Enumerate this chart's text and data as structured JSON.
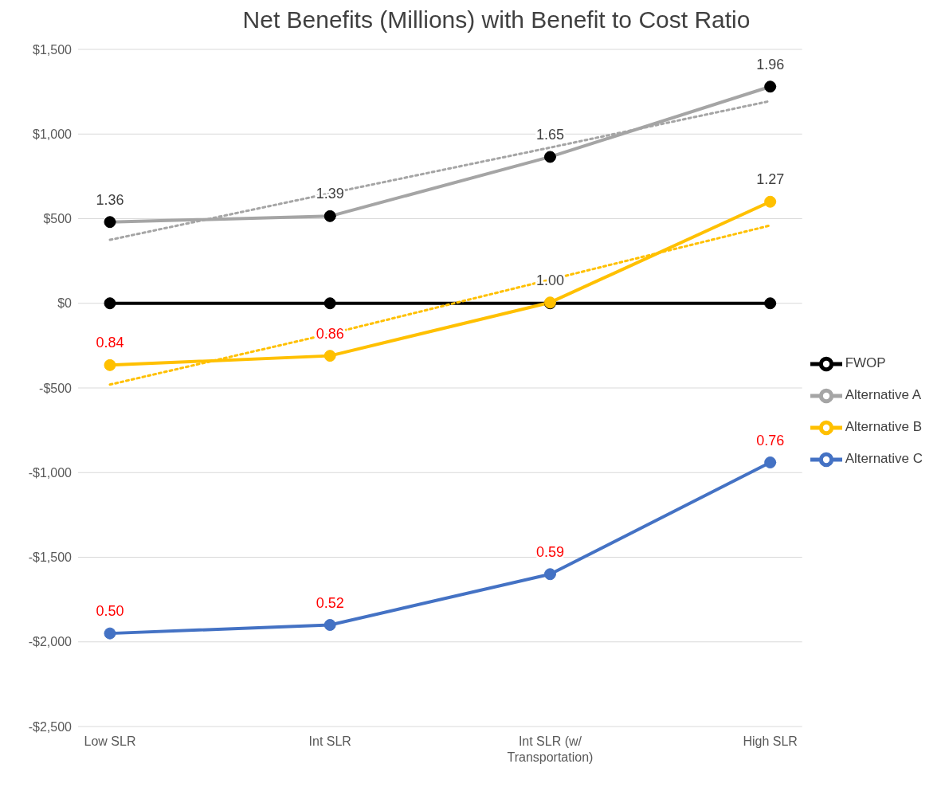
{
  "chart_data": {
    "type": "line",
    "title": "Net Benefits (Millions) with Benefit to Cost Ratio",
    "categories": [
      "Low SLR",
      "Int SLR",
      "Int SLR (w/ Transportation)",
      "High SLR"
    ],
    "series": [
      {
        "name": "FWOP",
        "color": "#000000",
        "values": [
          0,
          0,
          0,
          0
        ]
      },
      {
        "name": "Alternative A",
        "color": "#a5a5a5",
        "values": [
          480,
          515,
          865,
          1280
        ]
      },
      {
        "name": "Alternative B",
        "color": "#ffc000",
        "values": [
          -365,
          -310,
          5,
          600
        ]
      },
      {
        "name": "Alternative C",
        "color": "#4472c4",
        "values": [
          -1950,
          -1900,
          -1600,
          -940
        ]
      },
      {
        "type": "line",
        "color": "#a5a5a5",
        "values": [
          375,
          650,
          920,
          1195
        ],
        "line_style": "dotted",
        "marker": "none"
      },
      {
        "type": "line",
        "color": "#ffc000",
        "values": [
          -480,
          -180,
          140,
          460
        ],
        "line_style": "dotted",
        "marker": "none"
      }
    ],
    "ylim": [
      -2500,
      1500
    ],
    "yticks": [
      {
        "value": -2500,
        "label": "-$2,500"
      },
      {
        "value": -2000,
        "label": "-$2,000"
      },
      {
        "value": -1500,
        "label": "-$1,500"
      },
      {
        "value": -1000,
        "label": "-$1,000"
      },
      {
        "value": -500,
        "label": "-$500"
      },
      {
        "value": 0,
        "label": "$0"
      },
      {
        "value": 500,
        "label": "$500"
      },
      {
        "value": 1000,
        "label": "$1,000"
      },
      {
        "value": 1500,
        "label": "$1,500"
      }
    ],
    "annotations": [
      {
        "text": "1.36",
        "x": "Low SLR",
        "y": 480
      },
      {
        "text": "1.39",
        "x": "Int SLR",
        "y": 515
      },
      {
        "text": "1.65",
        "x": "Int SLR (w/ Transportation)",
        "y": 865
      },
      {
        "text": "1.96",
        "x": "High SLR",
        "y": 1280
      },
      {
        "text": "0.84",
        "x": "Low SLR",
        "y": -365
      },
      {
        "text": "0.86",
        "x": "Int SLR",
        "y": -310
      },
      {
        "text": "1.00",
        "x": "Int SLR (w/ Transportation)",
        "y": 5
      },
      {
        "text": "1.27",
        "x": "High SLR",
        "y": 600
      },
      {
        "text": "0.50",
        "x": "Low SLR",
        "y": -1950
      },
      {
        "text": "0.52",
        "x": "Int SLR",
        "y": -1900
      },
      {
        "text": "0.59",
        "x": "Int SLR (w/ Transportation)",
        "y": -1600
      },
      {
        "text": "0.76",
        "x": "High SLR",
        "y": -940
      }
    ],
    "grid": "y",
    "legend": "right",
    "marker": "circle",
    "line_style": "solid"
  }
}
